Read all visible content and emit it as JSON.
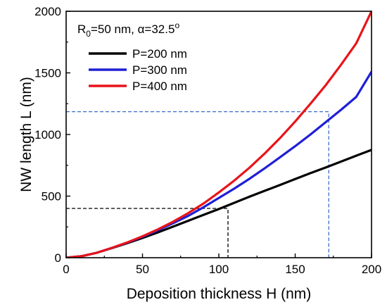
{
  "chart_data": {
    "type": "line",
    "xlabel": "Deposition thickness H (nm)",
    "ylabel": "NW length L (nm)",
    "xlim": [
      0,
      200
    ],
    "ylim": [
      0,
      2000
    ],
    "xticks": [
      0,
      50,
      100,
      150,
      200
    ],
    "yticks": [
      0,
      500,
      1000,
      1500,
      2000
    ],
    "grid": false,
    "legend_position": "top-left",
    "annotation": {
      "R_label": "R",
      "R_sub": "0",
      "R_value": "=50 nm, ",
      "alpha_symbol": "α",
      "alpha_value": "=32.5",
      "alpha_unit": "o"
    },
    "series": [
      {
        "name": "P=200 nm",
        "color": "#000000",
        "x": [
          0,
          10,
          20,
          30,
          40,
          50,
          60,
          70,
          80,
          90,
          100,
          110,
          120,
          130,
          140,
          150,
          160,
          170,
          180,
          190,
          200
        ],
        "y": [
          0,
          12,
          40,
          78,
          118,
          160,
          205,
          252,
          300,
          348,
          395,
          445,
          495,
          543,
          590,
          638,
          686,
          732,
          780,
          828,
          875
        ]
      },
      {
        "name": "P=300 nm",
        "color": "#1f1fd6",
        "x": [
          0,
          10,
          20,
          30,
          40,
          50,
          60,
          70,
          80,
          90,
          100,
          110,
          120,
          130,
          140,
          150,
          160,
          170,
          180,
          190,
          200
        ],
        "y": [
          0,
          12,
          40,
          80,
          122,
          170,
          222,
          280,
          340,
          410,
          485,
          560,
          640,
          725,
          815,
          905,
          1000,
          1100,
          1200,
          1305,
          1510
        ]
      },
      {
        "name": "P=400 nm",
        "color": "#e8141a",
        "x": [
          0,
          10,
          20,
          30,
          40,
          50,
          60,
          70,
          80,
          90,
          100,
          110,
          120,
          130,
          140,
          150,
          160,
          170,
          180,
          190,
          200
        ],
        "y": [
          0,
          12,
          40,
          80,
          124,
          174,
          230,
          292,
          362,
          440,
          530,
          625,
          730,
          845,
          970,
          1105,
          1250,
          1400,
          1565,
          1740,
          2000
        ]
      }
    ],
    "reference_lines": [
      {
        "x": 106,
        "y": 400,
        "color": "#000000"
      },
      {
        "x": 172,
        "y": 1185,
        "color": "#3a6bc9"
      }
    ]
  }
}
